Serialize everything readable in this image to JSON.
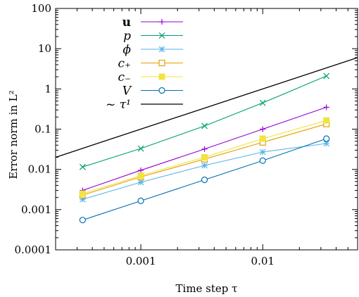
{
  "chart_data": {
    "type": "line",
    "xlabel": "Time step τ",
    "ylabel": "Error norm in L²",
    "x_scale": "log",
    "y_scale": "log",
    "xlim": [
      0.0002,
      0.06
    ],
    "ylim": [
      0.0001,
      100
    ],
    "x_ticks": [
      {
        "value": 0.001,
        "label": "0.001"
      },
      {
        "value": 0.01,
        "label": "0.01"
      }
    ],
    "y_ticks": [
      {
        "value": 0.0001,
        "label": "0.0001"
      },
      {
        "value": 0.001,
        "label": "0.001"
      },
      {
        "value": 0.01,
        "label": "0.01"
      },
      {
        "value": 0.1,
        "label": "0.1"
      },
      {
        "value": 1,
        "label": "1"
      },
      {
        "value": 10,
        "label": "10"
      },
      {
        "value": 100,
        "label": "100"
      }
    ],
    "grid": false,
    "legend_position": "top-left",
    "x": [
      0.000333,
      0.001,
      0.00333,
      0.01,
      0.0333
    ],
    "series": [
      {
        "name": "u",
        "color": "#9400d3",
        "marker": "plus",
        "values": [
          0.003,
          0.0095,
          0.032,
          0.1,
          0.35
        ]
      },
      {
        "name": "p",
        "color": "#009e73",
        "marker": "cross",
        "values": [
          0.0115,
          0.033,
          0.12,
          0.45,
          2.1
        ]
      },
      {
        "name": "ϕ",
        "color": "#56b4e9",
        "marker": "star",
        "values": [
          0.0018,
          0.0048,
          0.0125,
          0.027,
          0.044
        ]
      },
      {
        "name": "c₊",
        "color": "#e69f00",
        "marker": "open-square",
        "values": [
          0.0023,
          0.0065,
          0.018,
          0.047,
          0.135
        ]
      },
      {
        "name": "c₋",
        "color": "#f0e442",
        "marker": "filled-square",
        "values": [
          0.0025,
          0.007,
          0.02,
          0.058,
          0.165
        ]
      },
      {
        "name": "V",
        "color": "#0072b2",
        "marker": "circle",
        "values": [
          0.00055,
          0.00165,
          0.0055,
          0.0165,
          0.058
        ]
      },
      {
        "name": "~ τ¹",
        "color": "#000000",
        "marker": "none",
        "x": [
          0.0002,
          0.06
        ],
        "values": [
          0.02,
          6.0
        ]
      }
    ]
  }
}
